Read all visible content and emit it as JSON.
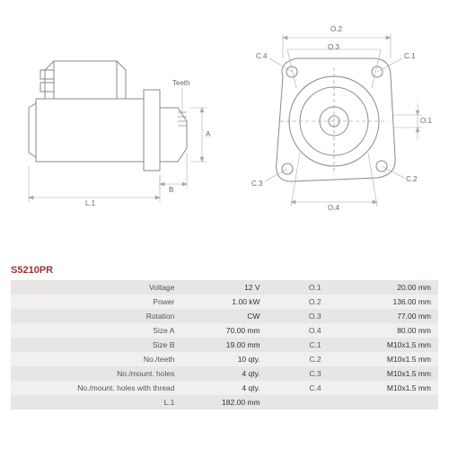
{
  "part_number": "S5210PR",
  "part_number_color": "#a03030",
  "drawing": {
    "stroke_color": "#888888",
    "stroke_width": 1,
    "dim_stroke": "#aaaaaa",
    "dim_stroke_width": 0.6,
    "labels": {
      "L1": "L.1",
      "A": "A",
      "B": "B",
      "Teeth": "Teeth",
      "O1": "O.1",
      "O2": "O.2",
      "O3": "O.3",
      "O4": "O.4",
      "C1": "C.1",
      "C2": "C.2",
      "C3": "C.3",
      "C4": "C.4"
    }
  },
  "specs_left": [
    {
      "label": "Voltage",
      "value": "12 V"
    },
    {
      "label": "Power",
      "value": "1.00 kW"
    },
    {
      "label": "Rotation",
      "value": "CW"
    },
    {
      "label": "Size A",
      "value": "70.00 mm"
    },
    {
      "label": "Size B",
      "value": "19.00 mm"
    },
    {
      "label": "No./teeth",
      "value": "10 qty."
    },
    {
      "label": "No./mount. holes",
      "value": "4 qty."
    },
    {
      "label": "No./mount. holes with thread",
      "value": "4 qty."
    },
    {
      "label": "L.1",
      "value": "182.00 mm"
    }
  ],
  "specs_right": [
    {
      "label": "O.1",
      "value": "20.00 mm"
    },
    {
      "label": "O.2",
      "value": "136.00 mm"
    },
    {
      "label": "O.3",
      "value": "77.00 mm"
    },
    {
      "label": "O.4",
      "value": "80.00 mm"
    },
    {
      "label": "C.1",
      "value": "M10x1.5 mm"
    },
    {
      "label": "C.2",
      "value": "M10x1.5 mm"
    },
    {
      "label": "C.3",
      "value": "M10x1.5 mm"
    },
    {
      "label": "C.4",
      "value": "M10x1.5 mm"
    },
    {
      "label": "",
      "value": ""
    }
  ],
  "table_style": {
    "row_bg_odd": "#e8e6e4",
    "row_bg_even": "#f2f0ee",
    "font_size": 8.5
  }
}
